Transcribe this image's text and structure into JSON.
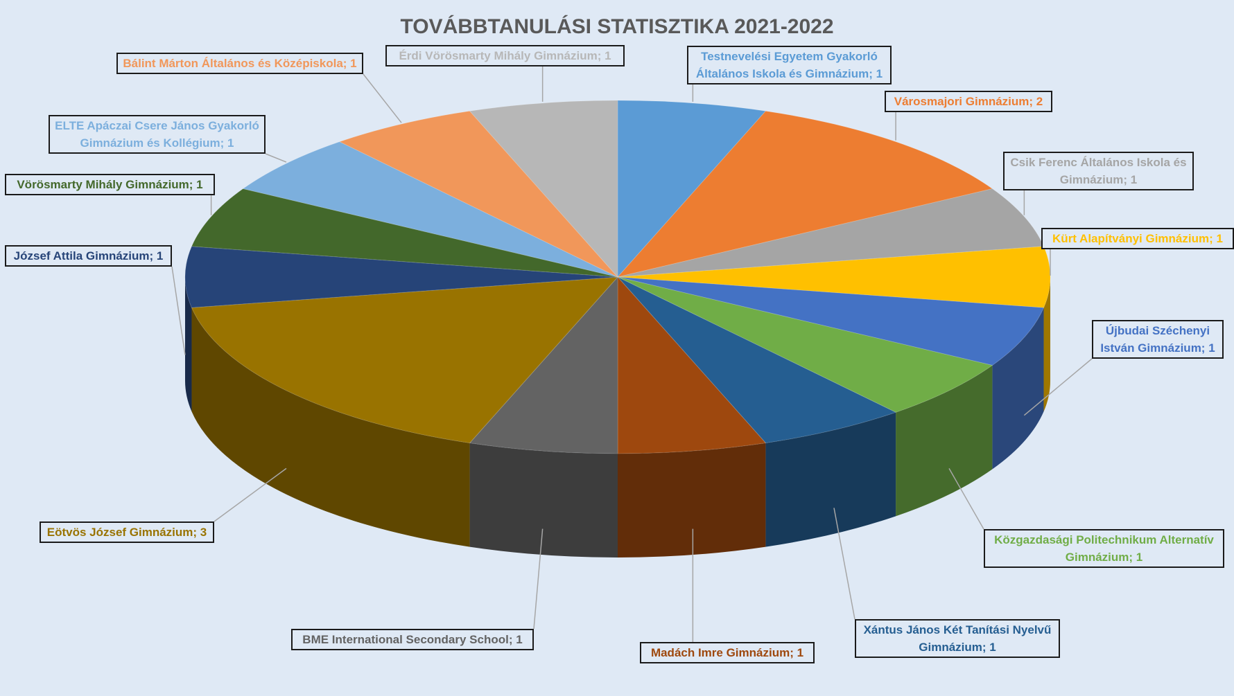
{
  "chart_data": {
    "type": "pie3d",
    "title": "TOVÁBBTANULÁSI STATISZTIKA 2021-2022",
    "values": [
      1,
      2,
      1,
      1,
      1,
      1,
      1,
      1,
      1,
      3,
      1,
      1,
      1,
      1,
      1
    ],
    "value_labels": [
      "Testnevelési Egyetem Gyakorló Általános Iskola és Gimnázium; 1",
      "Városmajori Gimnázium; 2",
      "Csik Ferenc Általános Iskola és Gimnázium; 1",
      "Kürt Alapítványi Gimnázium; 1",
      "Újbudai Széchenyi István Gimnázium; 1",
      "Közgazdasági Politechnikum Alternatív Gimnázium; 1",
      "Xántus János Két Tanítási Nyelvű Gimnázium; 1",
      "Madách Imre Gimnázium; 1",
      "BME International Secondary School; 1",
      "Eötvös József Gimnázium; 3",
      "József Attila Gimnázium; 1",
      "Vörösmarty Mihály Gimnázium; 1",
      "ELTE Apáczai Csere János Gyakorló Gimnázium és Kollégium; 1",
      "Bálint Márton Általános és Középiskola; 1",
      "Érdi Vörösmarty Mihály Gimnázium; 1"
    ],
    "colors": [
      "#5b9bd5",
      "#ed7d31",
      "#a5a5a5",
      "#ffc000",
      "#4472c4",
      "#70ad47",
      "#255e91",
      "#9e480e",
      "#636363",
      "#997300",
      "#264478",
      "#43682b",
      "#7cafdd",
      "#f1975a",
      "#b7b7b7"
    ]
  }
}
